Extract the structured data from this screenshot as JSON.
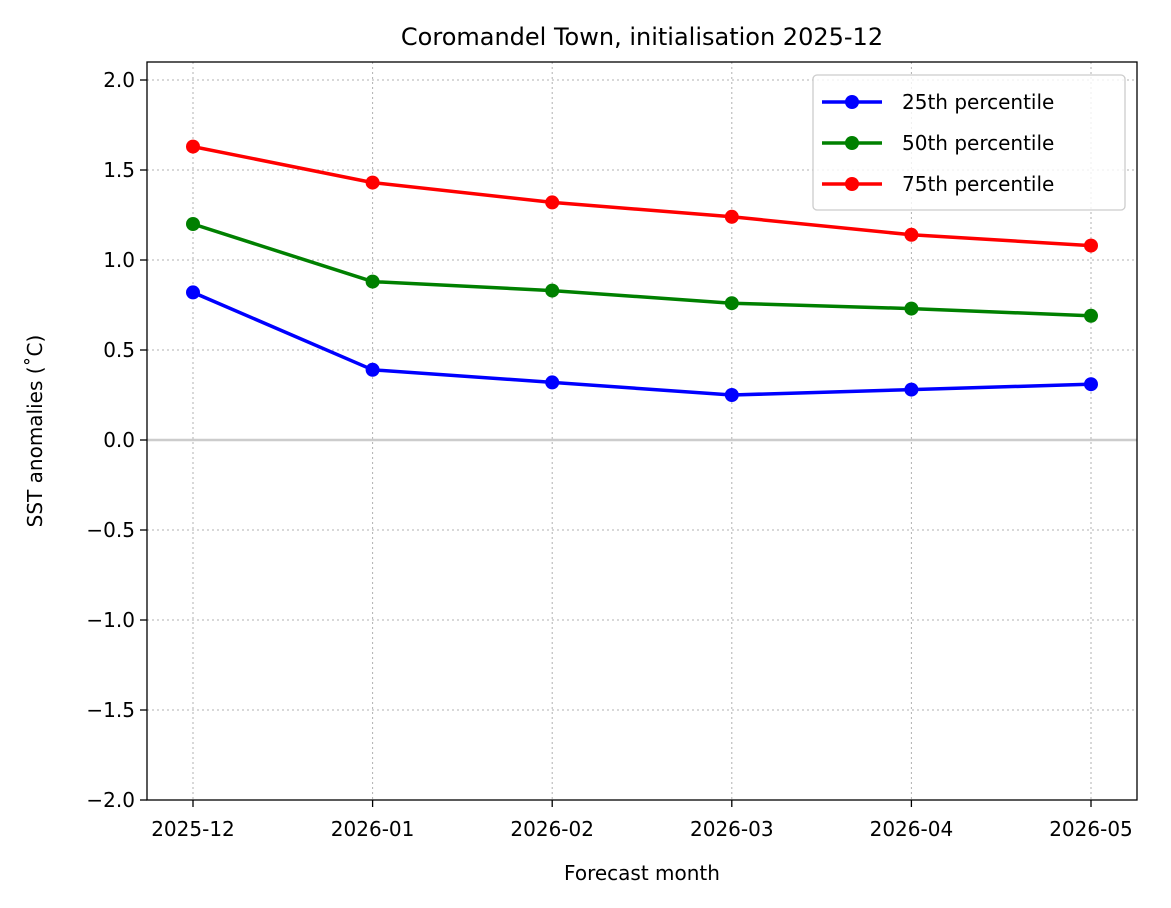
{
  "chart_data": {
    "type": "line",
    "title": "Coromandel Town, initialisation 2025-12",
    "xlabel": "Forecast month",
    "ylabel": "SST anomalies (˚C)",
    "categories": [
      "2025-12",
      "2026-01",
      "2026-02",
      "2026-03",
      "2026-04",
      "2026-05"
    ],
    "ylim": [
      -2.0,
      2.1
    ],
    "yticks": [
      "−2.0",
      "−1.5",
      "−1.0",
      "−0.5",
      "0.0",
      "0.5",
      "1.0",
      "1.5",
      "2.0"
    ],
    "ytick_values": [
      -2.0,
      -1.5,
      -1.0,
      -0.5,
      0.0,
      0.5,
      1.0,
      1.5,
      2.0
    ],
    "grid": true,
    "grid_style": "dotted",
    "zero_line": true,
    "zero_line_color": "#cccccc",
    "legend_position": "top-right",
    "series": [
      {
        "name": "25th percentile",
        "color": "#0000ff",
        "values": [
          0.82,
          0.39,
          0.32,
          0.25,
          0.28,
          0.31
        ]
      },
      {
        "name": "50th percentile",
        "color": "#008000",
        "values": [
          1.2,
          0.88,
          0.83,
          0.76,
          0.73,
          0.69
        ]
      },
      {
        "name": "75th percentile",
        "color": "#ff0000",
        "values": [
          1.63,
          1.43,
          1.32,
          1.24,
          1.14,
          1.08
        ]
      }
    ]
  }
}
